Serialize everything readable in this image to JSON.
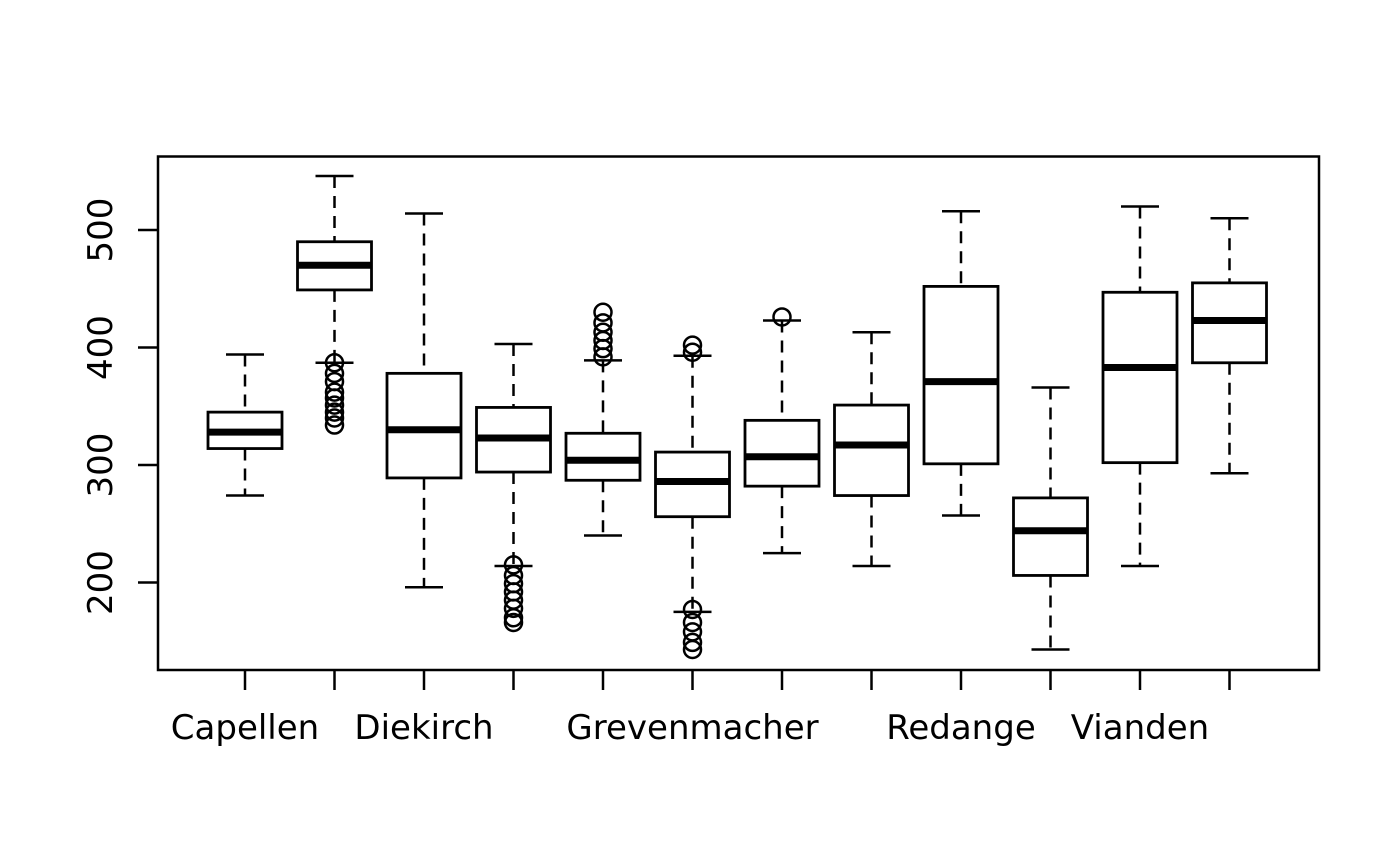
{
  "figure": {
    "background_color": "#ffffff",
    "stroke_color": "#000000",
    "title": ""
  },
  "chart_data": {
    "type": "boxplot",
    "title": "",
    "xlabel": "",
    "ylabel": "",
    "grid": false,
    "legend": null,
    "y_ticks": [
      200,
      300,
      400,
      500
    ],
    "ylim": [
      126,
      562
    ],
    "x_positions": [
      1,
      2,
      3,
      4,
      5,
      6,
      7,
      8,
      9,
      10,
      11,
      12
    ],
    "x_tick_labels": [
      {
        "position": 1,
        "label": "Capellen"
      },
      {
        "position": 3,
        "label": "Diekirch"
      },
      {
        "position": 6,
        "label": "Grevenmacher"
      },
      {
        "position": 9,
        "label": "Redange"
      },
      {
        "position": 11,
        "label": "Vianden"
      }
    ],
    "boxes": [
      {
        "position": 1,
        "whisker_low": 274,
        "q1": 314,
        "median": 328,
        "q3": 345,
        "whisker_high": 394,
        "outliers": []
      },
      {
        "position": 2,
        "whisker_low": 387,
        "q1": 449,
        "median": 470,
        "q3": 490,
        "whisker_high": 546,
        "outliers": [
          387,
          378,
          371,
          362,
          357,
          351,
          345,
          340,
          334
        ]
      },
      {
        "position": 3,
        "whisker_low": 196,
        "q1": 289,
        "median": 330,
        "q3": 378,
        "whisker_high": 514,
        "outliers": []
      },
      {
        "position": 4,
        "whisker_low": 214,
        "q1": 294,
        "median": 323,
        "q3": 349,
        "whisker_high": 403,
        "outliers": [
          215,
          206,
          199,
          192,
          185,
          178,
          170,
          166
        ]
      },
      {
        "position": 5,
        "whisker_low": 240,
        "q1": 287,
        "median": 304,
        "q3": 327,
        "whisker_high": 389,
        "outliers": [
          430,
          421,
          413,
          406,
          399,
          392
        ]
      },
      {
        "position": 6,
        "whisker_low": 175,
        "q1": 256,
        "median": 286,
        "q3": 311,
        "whisker_high": 393,
        "outliers": [
          402,
          396,
          177,
          166,
          158,
          149,
          143
        ]
      },
      {
        "position": 7,
        "whisker_low": 225,
        "q1": 282,
        "median": 307,
        "q3": 338,
        "whisker_high": 423,
        "outliers": [
          426
        ]
      },
      {
        "position": 8,
        "whisker_low": 214,
        "q1": 274,
        "median": 317,
        "q3": 351,
        "whisker_high": 413,
        "outliers": []
      },
      {
        "position": 9,
        "whisker_low": 257,
        "q1": 301,
        "median": 371,
        "q3": 452,
        "whisker_high": 516,
        "outliers": []
      },
      {
        "position": 10,
        "whisker_low": 143,
        "q1": 206,
        "median": 244,
        "q3": 272,
        "whisker_high": 366,
        "outliers": []
      },
      {
        "position": 11,
        "whisker_low": 214,
        "q1": 302,
        "median": 383,
        "q3": 447,
        "whisker_high": 520,
        "outliers": []
      },
      {
        "position": 12,
        "whisker_low": 293,
        "q1": 387,
        "median": 423,
        "q3": 455,
        "whisker_high": 510,
        "outliers": []
      }
    ]
  }
}
